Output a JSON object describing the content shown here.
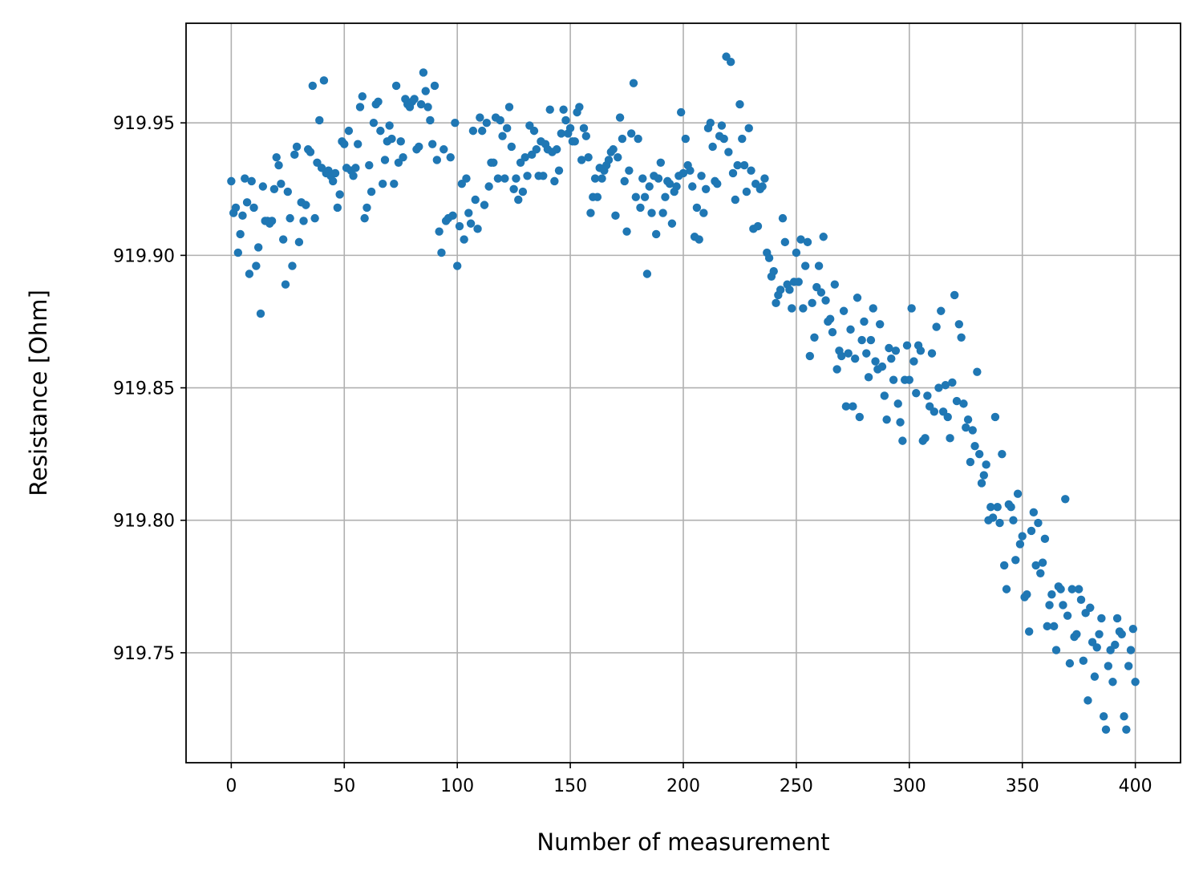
{
  "chart_data": {
    "type": "scatter",
    "x_label": "Number of measurement",
    "y_label": "Resistance [Ohm]",
    "color": "#1f77b4",
    "grid": true,
    "xlim": [
      -20,
      420
    ],
    "ylim": [
      919.7085,
      919.9876
    ],
    "xticks": [
      0,
      50,
      100,
      150,
      200,
      250,
      300,
      350,
      400
    ],
    "yticks": [
      919.75,
      {
        "value": 919.8,
        "label": "919.80"
      },
      919.85,
      {
        "value": 919.9,
        "label": "919.90"
      },
      919.95
    ],
    "x": [
      0,
      1,
      2,
      3,
      4,
      5,
      6,
      7,
      8,
      9,
      10,
      11,
      12,
      13,
      14,
      15,
      16,
      17,
      18,
      19,
      20,
      21,
      22,
      23,
      24,
      25,
      26,
      27,
      28,
      29,
      30,
      31,
      32,
      33,
      34,
      35,
      36,
      37,
      38,
      39,
      40,
      41,
      42,
      43,
      44,
      45,
      46,
      47,
      48,
      49,
      50,
      51,
      52,
      53,
      54,
      55,
      56,
      57,
      58,
      59,
      60,
      61,
      62,
      63,
      64,
      65,
      66,
      67,
      68,
      69,
      70,
      71,
      72,
      73,
      74,
      75,
      76,
      77,
      78,
      79,
      80,
      81,
      82,
      83,
      84,
      85,
      86,
      87,
      88,
      89,
      90,
      91,
      92,
      93,
      94,
      95,
      96,
      97,
      98,
      99,
      100,
      101,
      102,
      103,
      104,
      105,
      106,
      107,
      108,
      109,
      110,
      111,
      112,
      113,
      114,
      115,
      116,
      117,
      118,
      119,
      120,
      121,
      122,
      123,
      124,
      125,
      126,
      127,
      128,
      129,
      130,
      131,
      132,
      133,
      134,
      135,
      136,
      137,
      138,
      139,
      140,
      141,
      142,
      143,
      144,
      145,
      146,
      147,
      148,
      149,
      150,
      151,
      152,
      153,
      154,
      155,
      156,
      157,
      158,
      159,
      160,
      161,
      162,
      163,
      164,
      165,
      166,
      167,
      168,
      169,
      170,
      171,
      172,
      173,
      174,
      175,
      176,
      177,
      178,
      179,
      180,
      181,
      182,
      183,
      184,
      185,
      186,
      187,
      188,
      189,
      190,
      191,
      192,
      193,
      194,
      195,
      196,
      197,
      198,
      199,
      200,
      201,
      202,
      203,
      204,
      205,
      206,
      207,
      208,
      209,
      210,
      211,
      212,
      213,
      214,
      215,
      216,
      217,
      218,
      219,
      220,
      221,
      222,
      223,
      224,
      225,
      226,
      227,
      228,
      229,
      230,
      231,
      232,
      233,
      234,
      235,
      236,
      237,
      238,
      239,
      240,
      241,
      242,
      243,
      244,
      245,
      246,
      247,
      248,
      249,
      250,
      251,
      252,
      253,
      254,
      255,
      256,
      257,
      258,
      259,
      260,
      261,
      262,
      263,
      264,
      265,
      266,
      267,
      268,
      269,
      270,
      271,
      272,
      273,
      274,
      275,
      276,
      277,
      278,
      279,
      280,
      281,
      282,
      283,
      284,
      285,
      286,
      287,
      288,
      289,
      290,
      291,
      292,
      293,
      294,
      295,
      296,
      297,
      298,
      299,
      300,
      301,
      302,
      303,
      304,
      305,
      306,
      307,
      308,
      309,
      310,
      311,
      312,
      313,
      314,
      315,
      316,
      317,
      318,
      319,
      320,
      321,
      322,
      323,
      324,
      325,
      326,
      327,
      328,
      329,
      330,
      331,
      332,
      333,
      334,
      335,
      336,
      337,
      338,
      339,
      340,
      341,
      342,
      343,
      344,
      345,
      346,
      347,
      348,
      349,
      350,
      351,
      352,
      353,
      354,
      355,
      356,
      357,
      358,
      359,
      360,
      361,
      362,
      363,
      364,
      365,
      366,
      367,
      368,
      369,
      370,
      371,
      372,
      373,
      374,
      375,
      376,
      377,
      378,
      379,
      380,
      381,
      382,
      383,
      384,
      385,
      386,
      387,
      388,
      389,
      390,
      391,
      392,
      393,
      394,
      395,
      396,
      397,
      398,
      399,
      400
    ],
    "values": [
      919.928,
      919.916,
      919.918,
      919.901,
      919.908,
      919.915,
      919.929,
      919.92,
      919.893,
      919.928,
      919.918,
      919.896,
      919.903,
      919.878,
      919.926,
      919.913,
      919.913,
      919.912,
      919.913,
      919.925,
      919.937,
      919.934,
      919.927,
      919.906,
      919.889,
      919.924,
      919.914,
      919.896,
      919.938,
      919.941,
      919.905,
      919.92,
      919.913,
      919.919,
      919.94,
      919.939,
      919.964,
      919.914,
      919.935,
      919.951,
      919.933,
      919.966,
      919.931,
      919.932,
      919.93,
      919.928,
      919.931,
      919.918,
      919.923,
      919.943,
      919.942,
      919.933,
      919.947,
      919.932,
      919.93,
      919.933,
      919.942,
      919.956,
      919.96,
      919.914,
      919.918,
      919.934,
      919.924,
      919.95,
      919.957,
      919.958,
      919.947,
      919.927,
      919.936,
      919.943,
      919.949,
      919.944,
      919.927,
      919.964,
      919.935,
      919.943,
      919.937,
      919.959,
      919.957,
      919.956,
      919.958,
      919.959,
      919.94,
      919.941,
      919.957,
      919.969,
      919.962,
      919.956,
      919.951,
      919.942,
      919.964,
      919.936,
      919.909,
      919.901,
      919.94,
      919.913,
      919.914,
      919.937,
      919.915,
      919.95,
      919.896,
      919.911,
      919.927,
      919.906,
      919.929,
      919.916,
      919.912,
      919.947,
      919.921,
      919.91,
      919.952,
      919.947,
      919.919,
      919.95,
      919.926,
      919.935,
      919.935,
      919.952,
      919.929,
      919.951,
      919.945,
      919.929,
      919.948,
      919.956,
      919.941,
      919.925,
      919.929,
      919.921,
      919.935,
      919.924,
      919.937,
      919.93,
      919.949,
      919.938,
      919.947,
      919.94,
      919.93,
      919.943,
      919.93,
      919.942,
      919.94,
      919.955,
      919.939,
      919.928,
      919.94,
      919.932,
      919.946,
      919.955,
      919.951,
      919.946,
      919.948,
      919.943,
      919.943,
      919.954,
      919.956,
      919.936,
      919.948,
      919.945,
      919.937,
      919.916,
      919.922,
      919.929,
      919.922,
      919.933,
      919.929,
      919.932,
      919.934,
      919.936,
      919.939,
      919.94,
      919.915,
      919.937,
      919.952,
      919.944,
      919.928,
      919.909,
      919.932,
      919.946,
      919.965,
      919.922,
      919.944,
      919.918,
      919.929,
      919.922,
      919.893,
      919.926,
      919.916,
      919.93,
      919.908,
      919.929,
      919.935,
      919.916,
      919.922,
      919.928,
      919.927,
      919.912,
      919.924,
      919.926,
      919.93,
      919.954,
      919.931,
      919.944,
      919.934,
      919.932,
      919.926,
      919.907,
      919.918,
      919.906,
      919.93,
      919.916,
      919.925,
      919.948,
      919.95,
      919.941,
      919.928,
      919.927,
      919.945,
      919.949,
      919.944,
      919.975,
      919.939,
      919.973,
      919.931,
      919.921,
      919.934,
      919.957,
      919.944,
      919.934,
      919.924,
      919.948,
      919.932,
      919.91,
      919.927,
      919.911,
      919.925,
      919.926,
      919.929,
      919.901,
      919.899,
      919.892,
      919.894,
      919.882,
      919.885,
      919.887,
      919.914,
      919.905,
      919.889,
      919.887,
      919.88,
      919.89,
      919.901,
      919.89,
      919.906,
      919.88,
      919.896,
      919.905,
      919.862,
      919.882,
      919.869,
      919.888,
      919.896,
      919.886,
      919.907,
      919.883,
      919.875,
      919.876,
      919.871,
      919.889,
      919.857,
      919.864,
      919.862,
      919.879,
      919.843,
      919.863,
      919.872,
      919.843,
      919.861,
      919.884,
      919.839,
      919.868,
      919.875,
      919.863,
      919.854,
      919.868,
      919.88,
      919.86,
      919.857,
      919.874,
      919.858,
      919.847,
      919.838,
      919.865,
      919.861,
      919.853,
      919.864,
      919.844,
      919.837,
      919.83,
      919.853,
      919.866,
      919.853,
      919.88,
      919.86,
      919.848,
      919.866,
      919.864,
      919.83,
      919.831,
      919.847,
      919.843,
      919.863,
      919.841,
      919.873,
      919.85,
      919.879,
      919.841,
      919.851,
      919.839,
      919.831,
      919.852,
      919.885,
      919.845,
      919.874,
      919.869,
      919.844,
      919.835,
      919.838,
      919.822,
      919.834,
      919.828,
      919.856,
      919.825,
      919.814,
      919.817,
      919.821,
      919.8,
      919.805,
      919.801,
      919.839,
      919.805,
      919.799,
      919.825,
      919.783,
      919.774,
      919.806,
      919.805,
      919.8,
      919.785,
      919.81,
      919.791,
      919.794,
      919.771,
      919.772,
      919.758,
      919.796,
      919.803,
      919.783,
      919.799,
      919.78,
      919.784,
      919.793,
      919.76,
      919.768,
      919.772,
      919.76,
      919.751,
      919.775,
      919.774,
      919.768,
      919.808,
      919.764,
      919.746,
      919.774,
      919.756,
      919.757,
      919.774,
      919.77,
      919.747,
      919.765,
      919.732,
      919.767,
      919.754,
      919.741,
      919.752,
      919.757,
      919.763,
      919.726,
      919.721,
      919.745,
      919.751,
      919.739,
      919.753,
      919.763,
      919.758,
      919.757,
      919.726,
      919.721,
      919.745,
      919.751,
      919.759,
      919.739
    ]
  }
}
